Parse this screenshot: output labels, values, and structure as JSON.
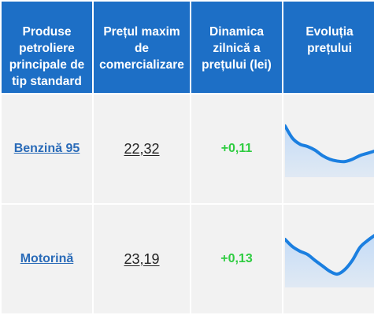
{
  "table": {
    "headers": [
      "Produse petroliere principale de tip standard",
      "Prețul maxim de comercializare",
      "Dinamica zilnică a prețului (lei)",
      "Evoluția prețului"
    ],
    "rows": [
      {
        "product": "Benzină 95",
        "price": "22,32",
        "change": "+0,11",
        "trend": [
          0.95,
          0.68,
          0.55,
          0.5,
          0.42,
          0.3,
          0.22,
          0.18,
          0.17,
          0.22,
          0.3,
          0.35,
          0.4
        ]
      },
      {
        "product": "Motorină",
        "price": "23,19",
        "change": "+0,13",
        "trend": [
          0.88,
          0.72,
          0.62,
          0.55,
          0.42,
          0.3,
          0.18,
          0.12,
          0.22,
          0.42,
          0.7,
          0.85,
          0.97
        ]
      }
    ]
  },
  "colors": {
    "header_bg": "#1d6fc6",
    "cell_bg": "#f2f2f2",
    "link": "#2a6bb8",
    "positive": "#2ecc40",
    "spark_line": "#1b7fe0",
    "spark_fill": "#bfd9f7"
  }
}
